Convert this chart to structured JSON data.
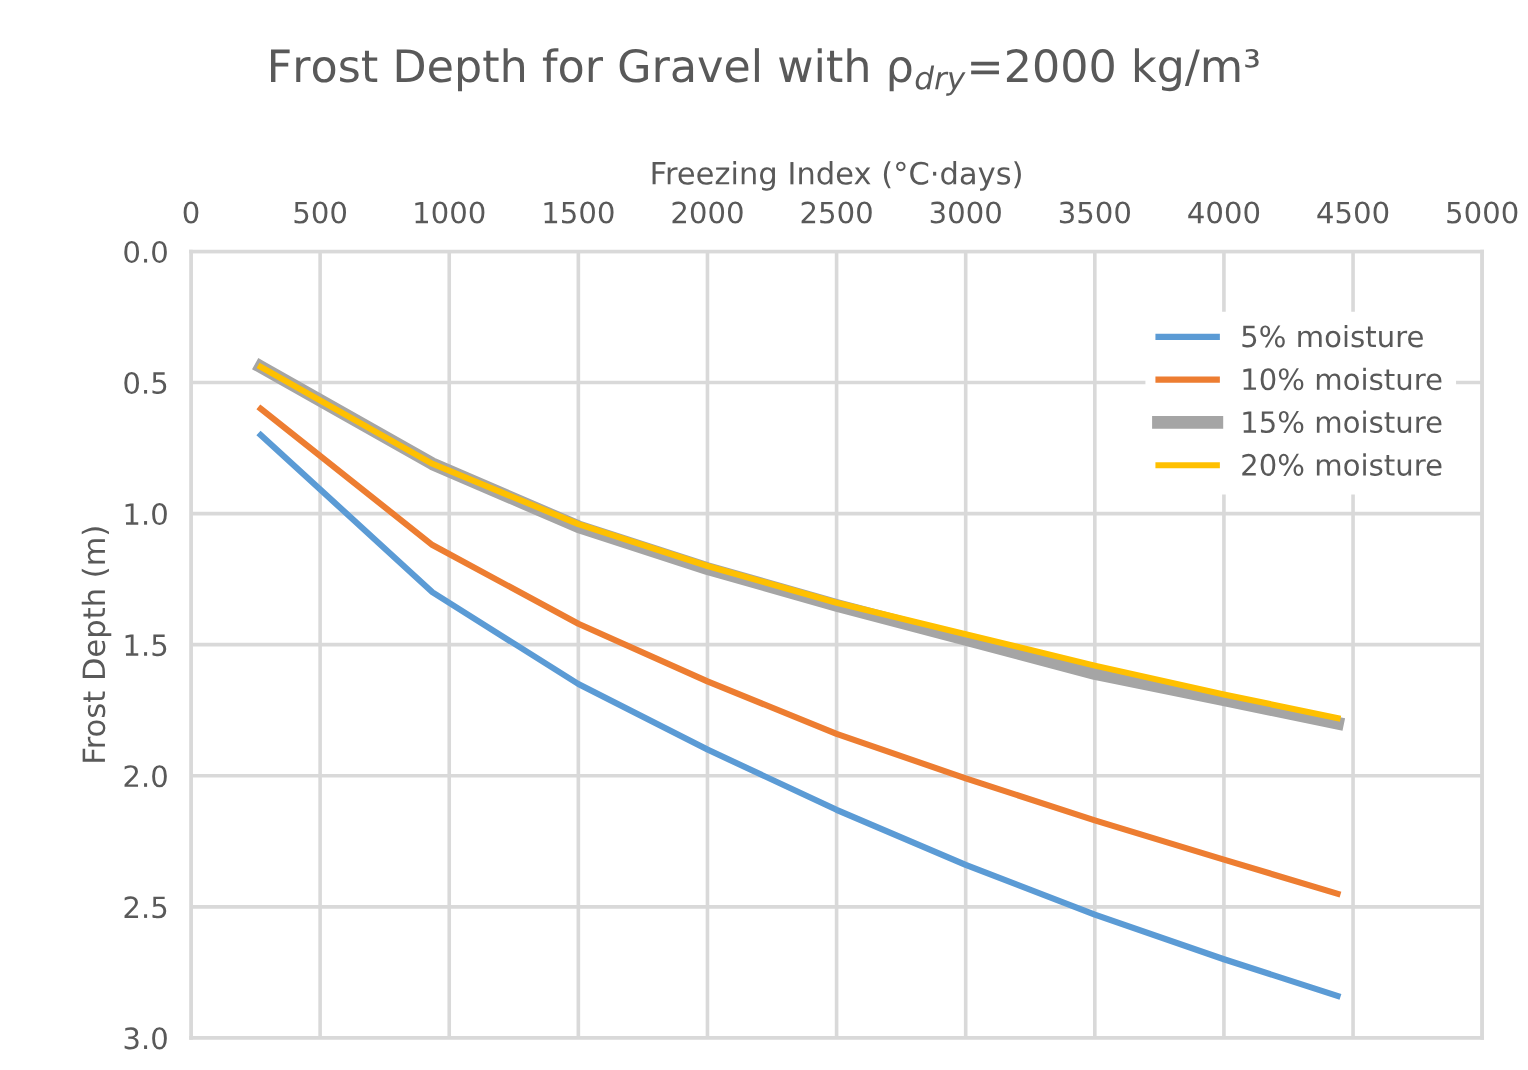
{
  "chart_data": {
    "type": "line",
    "title": "Frost Depth for Gravel with ρ$_{dry}$=2000 kg/m³",
    "xlabel": "Freezing Index (°C·days)",
    "ylabel": "Frost Depth (m)",
    "x": [
      270,
      935,
      1500,
      2000,
      2500,
      3000,
      3500,
      4000,
      4440
    ],
    "series": [
      {
        "name": "5% moisture",
        "color": "#5b9bd5",
        "values": [
          0.7,
          1.3,
          1.65,
          1.9,
          2.13,
          2.34,
          2.53,
          2.7,
          2.84
        ]
      },
      {
        "name": "10% moisture",
        "color": "#ed7d31",
        "values": [
          0.6,
          1.12,
          1.42,
          1.64,
          1.84,
          2.01,
          2.17,
          2.32,
          2.45
        ]
      },
      {
        "name": "15% moisture",
        "color": "#a5a5a5",
        "values": [
          0.44,
          0.81,
          1.05,
          1.21,
          1.35,
          1.48,
          1.61,
          1.71,
          1.8
        ]
      },
      {
        "name": "20% moisture",
        "color": "#ffc000",
        "values": [
          0.44,
          0.81,
          1.04,
          1.2,
          1.34,
          1.46,
          1.58,
          1.69,
          1.78
        ]
      }
    ],
    "xlim": [
      0,
      5000
    ],
    "xticks": [
      0,
      500,
      1000,
      1500,
      2000,
      2500,
      3000,
      3500,
      4000,
      4500,
      5000
    ],
    "ylim": [
      3.0,
      0.0
    ],
    "yticks": [
      {
        "value": 0,
        "label": "0.0"
      },
      {
        "value": 0.5,
        "label": "0.5"
      },
      {
        "value": 1,
        "label": "1.0"
      },
      {
        "value": 1.5,
        "label": "1.5"
      },
      {
        "value": 2,
        "label": "2.0"
      },
      {
        "value": 2.5,
        "label": "2.5"
      },
      {
        "value": 3,
        "label": "3.0"
      }
    ],
    "grid": true,
    "legend": "top right",
    "marker": "none",
    "line_style": "solid"
  }
}
